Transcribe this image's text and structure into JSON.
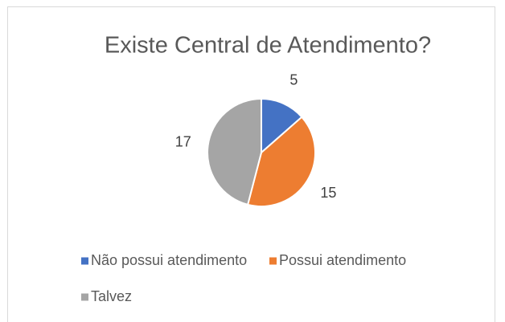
{
  "chart_data": {
    "type": "pie",
    "title": "Existe Central de Atendimento?",
    "categories": [
      "Não possui atendimento",
      "Possui atendimento",
      "Talvez"
    ],
    "values": [
      5,
      15,
      17
    ],
    "colors": [
      "#4472c4",
      "#ed7d31",
      "#a5a5a5"
    ],
    "legend": "bottom"
  }
}
